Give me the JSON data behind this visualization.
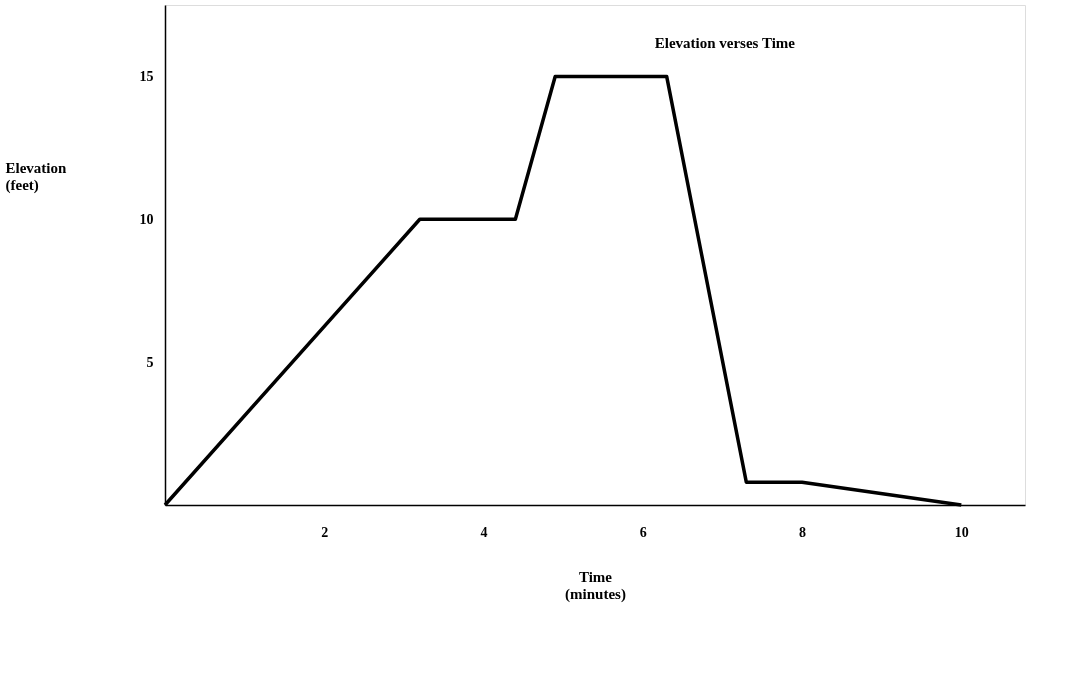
{
  "chart_data": {
    "type": "line",
    "title": "Elevation verses Time",
    "xlabel": "Time (minutes)",
    "ylabel": "Elevation (feet)",
    "x": [
      0,
      3.2,
      4.4,
      4.9,
      6.3,
      7.3,
      8,
      10
    ],
    "series": [
      {
        "color": "#000000",
        "values": [
          0,
          10,
          10,
          15,
          15,
          0.8,
          0.8,
          0
        ]
      }
    ],
    "xlim": [
      0,
      10.8
    ],
    "xticks": [
      2,
      4,
      6,
      8,
      10
    ],
    "ylim": [
      0,
      17.5
    ],
    "yticks": [
      5,
      10,
      15
    ],
    "grid": false,
    "legend": false,
    "marker": "none",
    "line_style": "solid"
  }
}
